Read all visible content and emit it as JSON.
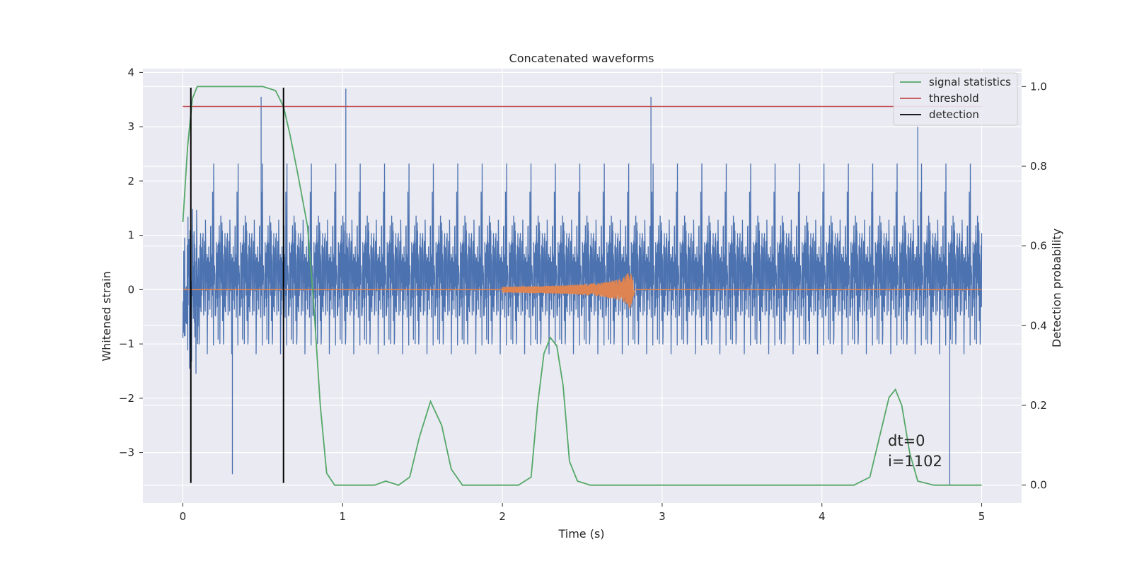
{
  "chart_data": {
    "type": "line",
    "title": "Concatenated waveforms",
    "xlabel": "Time (s)",
    "ylabel": "Whitened strain",
    "y2label": "Detection probability",
    "xlim": [
      -0.25,
      5.25
    ],
    "ylim": [
      -3.93,
      4.07
    ],
    "y2lim": [
      -0.045,
      1.045
    ],
    "xticks": [
      0,
      1,
      2,
      3,
      4,
      5
    ],
    "yticks": [
      -3,
      -2,
      -1,
      0,
      1,
      2,
      3,
      4
    ],
    "y2ticks": [
      0.0,
      0.2,
      0.4,
      0.6,
      0.8,
      1.0
    ],
    "xtick_labels": [
      "0",
      "1",
      "2",
      "3",
      "4",
      "5"
    ],
    "ytick_labels": [
      "−3",
      "−2",
      "−1",
      "0",
      "1",
      "2",
      "3",
      "4"
    ],
    "y2tick_labels": [
      "0.0",
      "0.2",
      "0.4",
      "0.6",
      "0.8",
      "1.0"
    ],
    "grid": true,
    "legend_position": "top-right",
    "colors": {
      "strain": "#4c72b0",
      "injection": "#dd8452",
      "signal_statistics": "#55a868",
      "threshold": "#c44e52",
      "detection": "#000000",
      "background": "#eaeaf2",
      "grid": "#ffffff"
    },
    "series": [
      {
        "name": "",
        "axis": "left",
        "description_of_values": "whitened detector noise, dense trace over t=0..5 s, typical amplitude about ±2.2",
        "x_range": [
          0,
          5
        ],
        "extremes": [
          [
            0.05,
            -3.1
          ],
          [
            0.31,
            -3.4
          ],
          [
            0.49,
            3.55
          ],
          [
            1.02,
            3.7
          ],
          [
            2.93,
            3.55
          ],
          [
            4.8,
            -3.6
          ],
          [
            4.6,
            3.0
          ]
        ]
      },
      {
        "name": "",
        "axis": "left",
        "description_of_values": "injected chirp waveform, zero except 2.0–2.82 s, amplitude growing to about ±0.4 at merger ~2.8 s",
        "x": [
          0,
          2.0,
          2.4,
          2.6,
          2.75,
          2.8,
          2.83,
          5
        ],
        "y_envelope": [
          0,
          0.05,
          0.08,
          0.12,
          0.2,
          0.35,
          0.02,
          0
        ]
      },
      {
        "name": "signal statistics",
        "axis": "right",
        "x": [
          0.0,
          0.03,
          0.06,
          0.09,
          0.12,
          0.15,
          0.5,
          0.58,
          0.63,
          0.67,
          0.72,
          0.78,
          0.82,
          0.86,
          0.9,
          0.95,
          1.2,
          1.27,
          1.35,
          1.42,
          1.48,
          1.55,
          1.62,
          1.68,
          1.75,
          2.1,
          2.18,
          2.22,
          2.26,
          2.3,
          2.34,
          2.38,
          2.42,
          2.47,
          2.55,
          3.0,
          3.5,
          3.95,
          4.2,
          4.3,
          4.36,
          4.42,
          4.46,
          4.5,
          4.55,
          4.6,
          4.7,
          5.0
        ],
        "y": [
          0.66,
          0.85,
          0.97,
          1.0,
          1.0,
          1.0,
          1.0,
          0.99,
          0.95,
          0.88,
          0.78,
          0.65,
          0.45,
          0.2,
          0.03,
          0.0,
          0.0,
          0.01,
          0.0,
          0.02,
          0.12,
          0.21,
          0.15,
          0.04,
          0.0,
          0.0,
          0.02,
          0.2,
          0.33,
          0.37,
          0.35,
          0.25,
          0.06,
          0.01,
          0.0,
          0.0,
          0.0,
          0.0,
          0.0,
          0.02,
          0.12,
          0.22,
          0.24,
          0.2,
          0.08,
          0.01,
          0.0,
          0.0
        ]
      },
      {
        "name": "threshold",
        "axis": "right",
        "x": [
          0,
          5
        ],
        "y": [
          0.95,
          0.95
        ]
      },
      {
        "name": "detection",
        "axis": "left",
        "type": "vlines",
        "x": [
          0.05,
          0.63
        ],
        "ymin": -3.56,
        "ymax": 3.72
      }
    ],
    "legend": [
      "signal statistics",
      "threshold",
      "detection"
    ],
    "annotation": {
      "lines": [
        "dt=0",
        "i=1102"
      ],
      "x": 4.5,
      "y2": 0.1
    }
  }
}
